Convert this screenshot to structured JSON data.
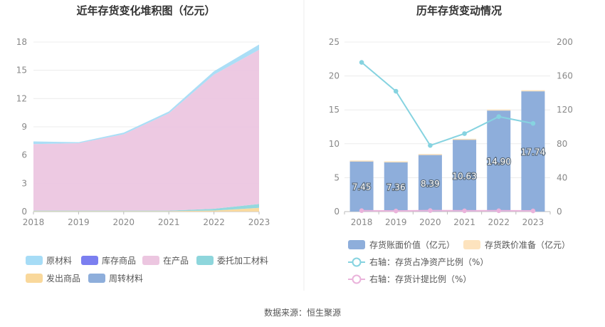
{
  "footer": {
    "source": "数据来源：恒生聚源"
  },
  "chart_data": [
    {
      "type": "area",
      "stacked": true,
      "title": "近年存货变化堆积图（亿元）",
      "categories": [
        "2018",
        "2019",
        "2020",
        "2021",
        "2022",
        "2023"
      ],
      "ylim": [
        0,
        18
      ],
      "yticks": [
        "0",
        "3",
        "6",
        "9",
        "12",
        "15",
        "18"
      ],
      "grid": true,
      "legend_position": "bottom",
      "series": [
        {
          "name": "原材料",
          "color": "#a6dcf6",
          "values": [
            0.28,
            0.1,
            0.18,
            0.2,
            0.36,
            0.56
          ]
        },
        {
          "name": "库存商品",
          "color": "#7b7ff0",
          "values": [
            0.0,
            0.0,
            0.0,
            0.0,
            0.0,
            0.0
          ]
        },
        {
          "name": "在产品",
          "color": "#ecc6e0",
          "values": [
            7.07,
            7.16,
            8.11,
            10.33,
            14.24,
            16.38
          ]
        },
        {
          "name": "委托加工材料",
          "color": "#8ed6dc",
          "values": [
            0.05,
            0.05,
            0.05,
            0.05,
            0.2,
            0.4
          ]
        },
        {
          "name": "发出商品",
          "color": "#f9d89b",
          "values": [
            0.05,
            0.05,
            0.05,
            0.05,
            0.1,
            0.4
          ]
        },
        {
          "name": "周转材料",
          "color": "#8eaedb",
          "values": [
            0.0,
            0.0,
            0.0,
            0.0,
            0.0,
            0.0
          ]
        }
      ]
    },
    {
      "type": "bar",
      "title": "历年存货变动情况",
      "categories": [
        "2018",
        "2019",
        "2020",
        "2021",
        "2022",
        "2023"
      ],
      "ylim": [
        0,
        25
      ],
      "yticks": [
        "0",
        "5",
        "10",
        "15",
        "20",
        "25"
      ],
      "y2lim": [
        0,
        200
      ],
      "y2ticks": [
        "0",
        "40",
        "80",
        "120",
        "160",
        "200"
      ],
      "grid": true,
      "legend_position": "bottom",
      "series": [
        {
          "name": "存货账面价值（亿元）",
          "type": "bar",
          "axis": "left",
          "color": "#8eaedb",
          "values": [
            7.45,
            7.36,
            8.39,
            10.63,
            14.9,
            17.74
          ],
          "labels": [
            "7.45",
            "7.36",
            "8.39",
            "10.63",
            "14.90",
            "17.74"
          ]
        },
        {
          "name": "存货跌价准备（亿元）",
          "type": "bar",
          "axis": "left",
          "color": "#fde3be",
          "values": [
            0.08,
            0.05,
            0.1,
            0.1,
            0.15,
            0.15
          ]
        },
        {
          "name": "右轴：存货占净资产比例（%）",
          "type": "line",
          "axis": "right",
          "color": "#86d3e0",
          "values": [
            176,
            142,
            78,
            92,
            112,
            104
          ]
        },
        {
          "name": "右轴：存货计提比例（%）",
          "type": "line",
          "axis": "right",
          "color": "#eab3db",
          "values": [
            1.1,
            0.7,
            1.2,
            0.9,
            1.0,
            0.8
          ]
        }
      ]
    }
  ]
}
